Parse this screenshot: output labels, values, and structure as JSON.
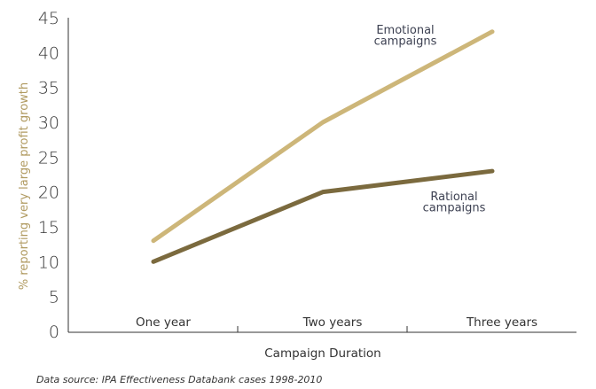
{
  "chart_data": {
    "type": "line",
    "categories": [
      "One year",
      "Two years",
      "Three years"
    ],
    "series": [
      {
        "name": "Emotional campaigns",
        "label_lines": [
          "Emotional",
          "campaigns"
        ],
        "values": [
          13,
          30,
          43
        ],
        "color": "#cdb679"
      },
      {
        "name": "Rational campaigns",
        "label_lines": [
          "Rational",
          "campaigns"
        ],
        "values": [
          10,
          20,
          23
        ],
        "color": "#7b6a3e"
      }
    ],
    "xlabel": "Campaign Duration",
    "ylabel": "% reporting very large profit growth",
    "ylim": [
      0,
      45
    ],
    "yticks": [
      0,
      5,
      10,
      15,
      20,
      25,
      30,
      35,
      40,
      45
    ],
    "grid": false,
    "source": "Data source: IPA Effectiveness Databank cases 1998-2010"
  }
}
